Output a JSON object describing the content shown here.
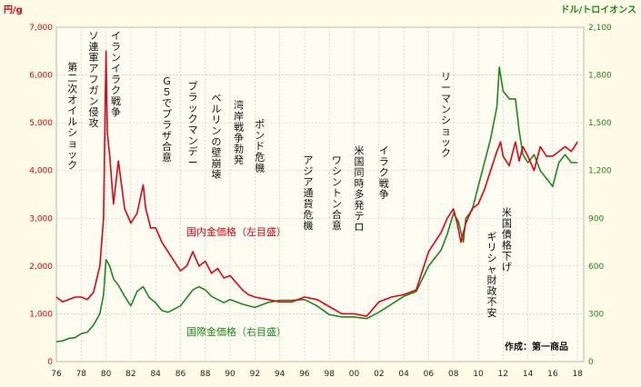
{
  "chart_data": {
    "type": "line",
    "left_unit": "円/g",
    "right_unit": "ドル/トロイオンス",
    "left_ticks": [
      "0",
      "1,000",
      "2,000",
      "3,000",
      "4,000",
      "5,000",
      "6,000",
      "7,000"
    ],
    "right_ticks": [
      "0",
      "300",
      "600",
      "900",
      "1,200",
      "1,500",
      "1,800",
      "2,100"
    ],
    "x_ticks": [
      "76",
      "78",
      "80",
      "82",
      "84",
      "86",
      "88",
      "90",
      "92",
      "94",
      "96",
      "98",
      "00",
      "02",
      "04",
      "06",
      "08",
      "10",
      "12",
      "14",
      "16",
      "18"
    ],
    "ylim_left": [
      0,
      7000
    ],
    "ylim_right": [
      0,
      2100
    ],
    "xlim": [
      1976,
      2018.5
    ],
    "grid": true,
    "series": [
      {
        "name": "国内金価格（左目盛）",
        "axis": "left",
        "color": "#e60012",
        "x": [
          1976,
          1976.5,
          1977,
          1977.5,
          1978,
          1978.5,
          1979,
          1979.5,
          1979.8,
          1980.0,
          1980.1,
          1980.3,
          1980.6,
          1981.0,
          1981.5,
          1982.0,
          1982.5,
          1983.0,
          1983.2,
          1983.6,
          1984.0,
          1984.5,
          1985.0,
          1985.5,
          1986.0,
          1986.5,
          1987.0,
          1987.5,
          1988.0,
          1988.5,
          1989.0,
          1989.5,
          1990.0,
          1990.5,
          1991.0,
          1991.5,
          1992.0,
          1993.0,
          1994.0,
          1995.0,
          1996.0,
          1997.0,
          1998.0,
          1999.0,
          2000.0,
          2001.0,
          2002.0,
          2003.0,
          2004.0,
          2005.0,
          2006.0,
          2006.5,
          2007.0,
          2007.5,
          2008.0,
          2008.3,
          2008.6,
          2009.0,
          2009.5,
          2010.0,
          2010.5,
          2011.0,
          2011.5,
          2011.8,
          2012.0,
          2012.5,
          2013.0,
          2013.3,
          2013.6,
          2014.0,
          2014.5,
          2015.0,
          2015.5,
          2016.0,
          2016.5,
          2017.0,
          2017.5,
          2018.0
        ],
        "values": [
          1350,
          1250,
          1300,
          1350,
          1350,
          1300,
          1450,
          2000,
          3000,
          6500,
          4800,
          4300,
          3300,
          4200,
          3200,
          2900,
          3100,
          3700,
          3200,
          2800,
          2800,
          2500,
          2300,
          2100,
          1900,
          2000,
          2300,
          2000,
          2100,
          1850,
          1950,
          1750,
          1800,
          1650,
          1500,
          1400,
          1350,
          1300,
          1250,
          1250,
          1350,
          1300,
          1150,
          1000,
          1000,
          950,
          1250,
          1350,
          1400,
          1500,
          2300,
          2500,
          2700,
          3000,
          3200,
          2900,
          2500,
          2900,
          3200,
          3300,
          3600,
          4000,
          4400,
          4600,
          4300,
          4100,
          4600,
          4200,
          4500,
          4300,
          4000,
          4500,
          4300,
          4300,
          4400,
          4500,
          4400,
          4600
        ]
      },
      {
        "name": "国際金価格（右目盛）",
        "axis": "right",
        "color": "#1a8a1a",
        "x": [
          1976,
          1976.5,
          1977,
          1977.5,
          1978,
          1978.5,
          1979,
          1979.5,
          1979.8,
          1980.0,
          1980.3,
          1980.6,
          1981.0,
          1981.5,
          1982.0,
          1982.5,
          1983.0,
          1983.5,
          1984.0,
          1984.5,
          1985.0,
          1985.5,
          1986.0,
          1986.5,
          1987.0,
          1987.5,
          1988.0,
          1988.5,
          1989.0,
          1989.5,
          1990.0,
          1991.0,
          1992.0,
          1993.0,
          1994.0,
          1995.0,
          1996.0,
          1997.0,
          1998.0,
          1999.0,
          2000.0,
          2001.0,
          2002.0,
          2003.0,
          2004.0,
          2005.0,
          2006.0,
          2006.5,
          2007.0,
          2007.5,
          2008.0,
          2008.4,
          2008.8,
          2009.0,
          2009.5,
          2010.0,
          2010.5,
          2011.0,
          2011.5,
          2011.7,
          2012.0,
          2012.5,
          2013.0,
          2013.3,
          2013.6,
          2014.0,
          2014.5,
          2015.0,
          2015.5,
          2016.0,
          2016.5,
          2017.0,
          2017.5,
          2018.0
        ],
        "values": [
          125,
          130,
          145,
          150,
          175,
          185,
          230,
          300,
          420,
          640,
          600,
          520,
          480,
          410,
          350,
          440,
          470,
          400,
          370,
          320,
          310,
          330,
          350,
          400,
          450,
          470,
          450,
          410,
          390,
          370,
          390,
          360,
          340,
          370,
          385,
          385,
          390,
          350,
          295,
          280,
          280,
          270,
          310,
          360,
          410,
          440,
          600,
          650,
          700,
          800,
          930,
          880,
          750,
          900,
          950,
          1100,
          1250,
          1400,
          1600,
          1850,
          1700,
          1650,
          1650,
          1450,
          1300,
          1250,
          1300,
          1200,
          1150,
          1100,
          1250,
          1300,
          1250,
          1250
        ]
      }
    ],
    "annotations": [
      "第二次オイルショック",
      "ソ連軍アフガン侵攻",
      "イランイラク戦争",
      "Ｇ５でプラザ合意",
      "ブラックマンデー",
      "ベルリンの壁崩壊",
      "湾岸戦争勃発",
      "ポンド危機",
      "アジア通貨危機",
      "ワシントン合意",
      "米国同時多発テロ",
      "イラク戦争",
      "リーマンショック",
      "米国債格下げ",
      "ギリシャ財政不安"
    ],
    "series_labels": [
      "国内金価格（左目盛）",
      "国際金価格（右目盛）"
    ],
    "source": "作成：第一商品"
  }
}
